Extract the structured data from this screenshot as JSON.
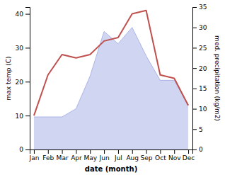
{
  "chart_data": {
    "type": "line",
    "categories": [
      "Jan",
      "Feb",
      "Mar",
      "Apr",
      "May",
      "Jun",
      "Jul",
      "Aug",
      "Sep",
      "Oct",
      "Nov",
      "Dec"
    ],
    "xlabel": "date (month)",
    "ylabel": "max temp (C)",
    "y2label": "med. precipitation (kg/m2)",
    "ylim": [
      0,
      42
    ],
    "yticks": [
      0,
      10,
      20,
      30,
      40
    ],
    "y2lim": [
      0,
      35
    ],
    "y2ticks": [
      0,
      5,
      10,
      15,
      20,
      25,
      30,
      35
    ],
    "series": [
      {
        "type": "area",
        "axis": "y2",
        "color": "#aab4e8",
        "values": [
          8,
          8,
          8,
          10,
          18,
          29,
          26,
          30,
          23,
          17,
          17,
          11
        ]
      },
      {
        "type": "line",
        "color": "#c0504d",
        "values": [
          10,
          22,
          28,
          27,
          28,
          32,
          33,
          40,
          41,
          22,
          21,
          13
        ]
      }
    ]
  }
}
